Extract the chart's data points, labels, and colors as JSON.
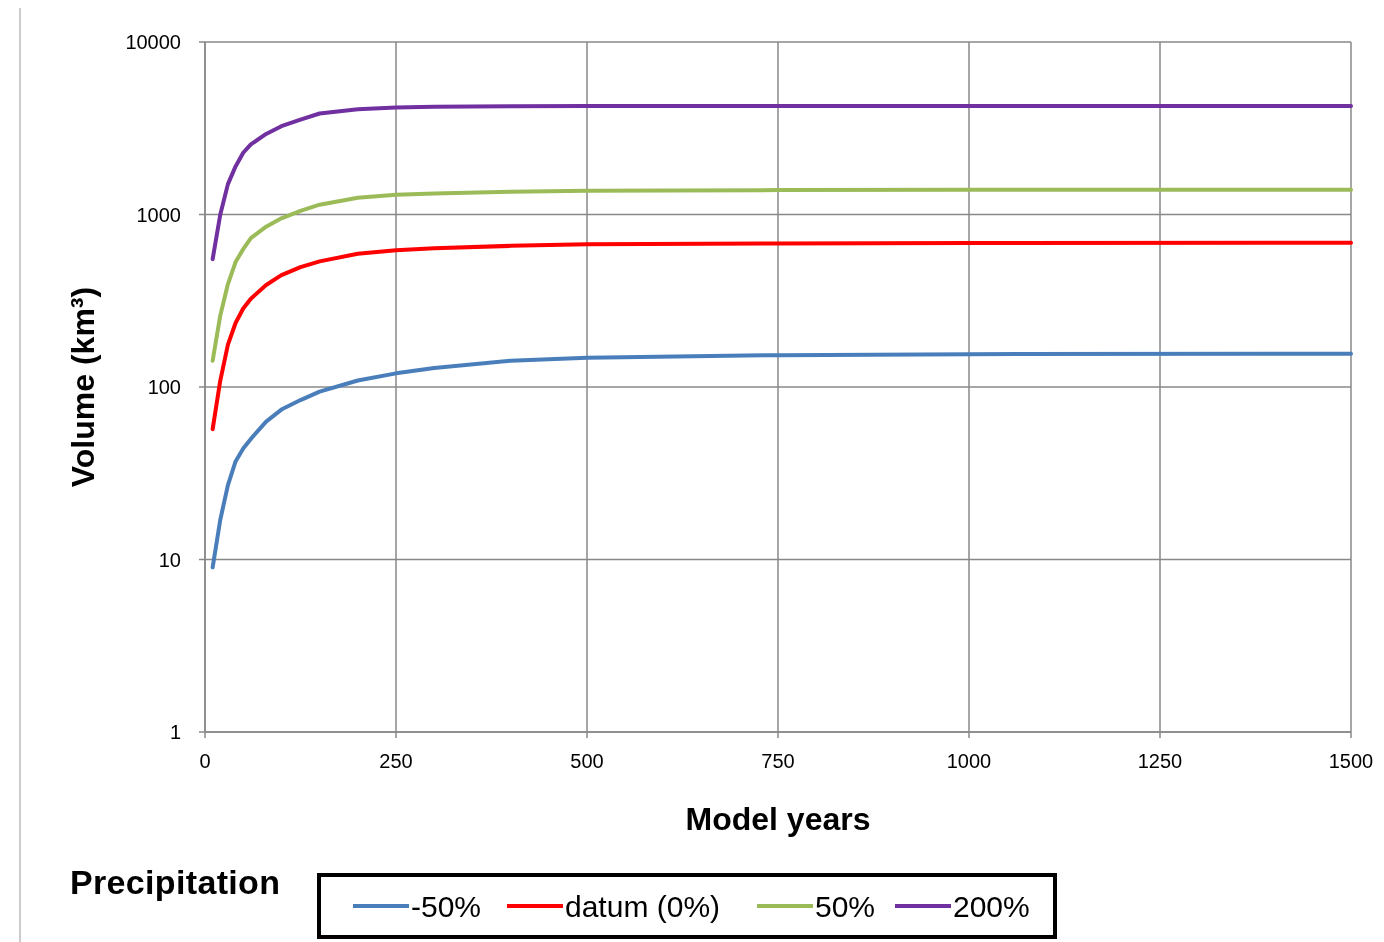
{
  "chart_data": {
    "type": "line",
    "xlabel": "Model  years",
    "ylabel": "Volume (km³)",
    "legend_title": "Precipitation",
    "legend": "bottom",
    "grid": true,
    "log": "y",
    "line_style": "solid",
    "marker": "none",
    "x": [
      10,
      20,
      30,
      40,
      50,
      60,
      80,
      100,
      125,
      150,
      200,
      250,
      300,
      400,
      500,
      750,
      1000,
      1500
    ],
    "xlim": [
      0,
      1500
    ],
    "xticks": [
      0,
      250,
      500,
      750,
      1000,
      1250,
      1500
    ],
    "ylim": [
      1,
      10000
    ],
    "yticks": [
      1,
      10,
      100,
      1000,
      10000
    ],
    "series": [
      {
        "name": "-50%",
        "color": "#4a7ebb",
        "values": [
          9,
          17,
          27,
          37,
          44,
          50,
          63,
          74,
          84,
          94,
          109,
          120,
          129,
          142,
          148,
          153,
          155,
          156
        ]
      },
      {
        "name": "datum (0%)",
        "color": "#ff0000",
        "values": [
          57,
          109,
          176,
          235,
          285,
          325,
          390,
          445,
          495,
          535,
          592,
          621,
          638,
          658,
          672,
          680,
          684,
          686
        ]
      },
      {
        "name": "50%",
        "color": "#9bbb59",
        "values": [
          142,
          260,
          395,
          530,
          630,
          730,
          850,
          950,
          1050,
          1140,
          1250,
          1300,
          1325,
          1355,
          1375,
          1385,
          1390,
          1390
        ]
      },
      {
        "name": "200%",
        "color": "#7030a0",
        "values": [
          551,
          1000,
          1500,
          1900,
          2280,
          2550,
          2930,
          3250,
          3550,
          3850,
          4075,
          4170,
          4210,
          4240,
          4260,
          4260,
          4260,
          4260
        ]
      }
    ]
  }
}
